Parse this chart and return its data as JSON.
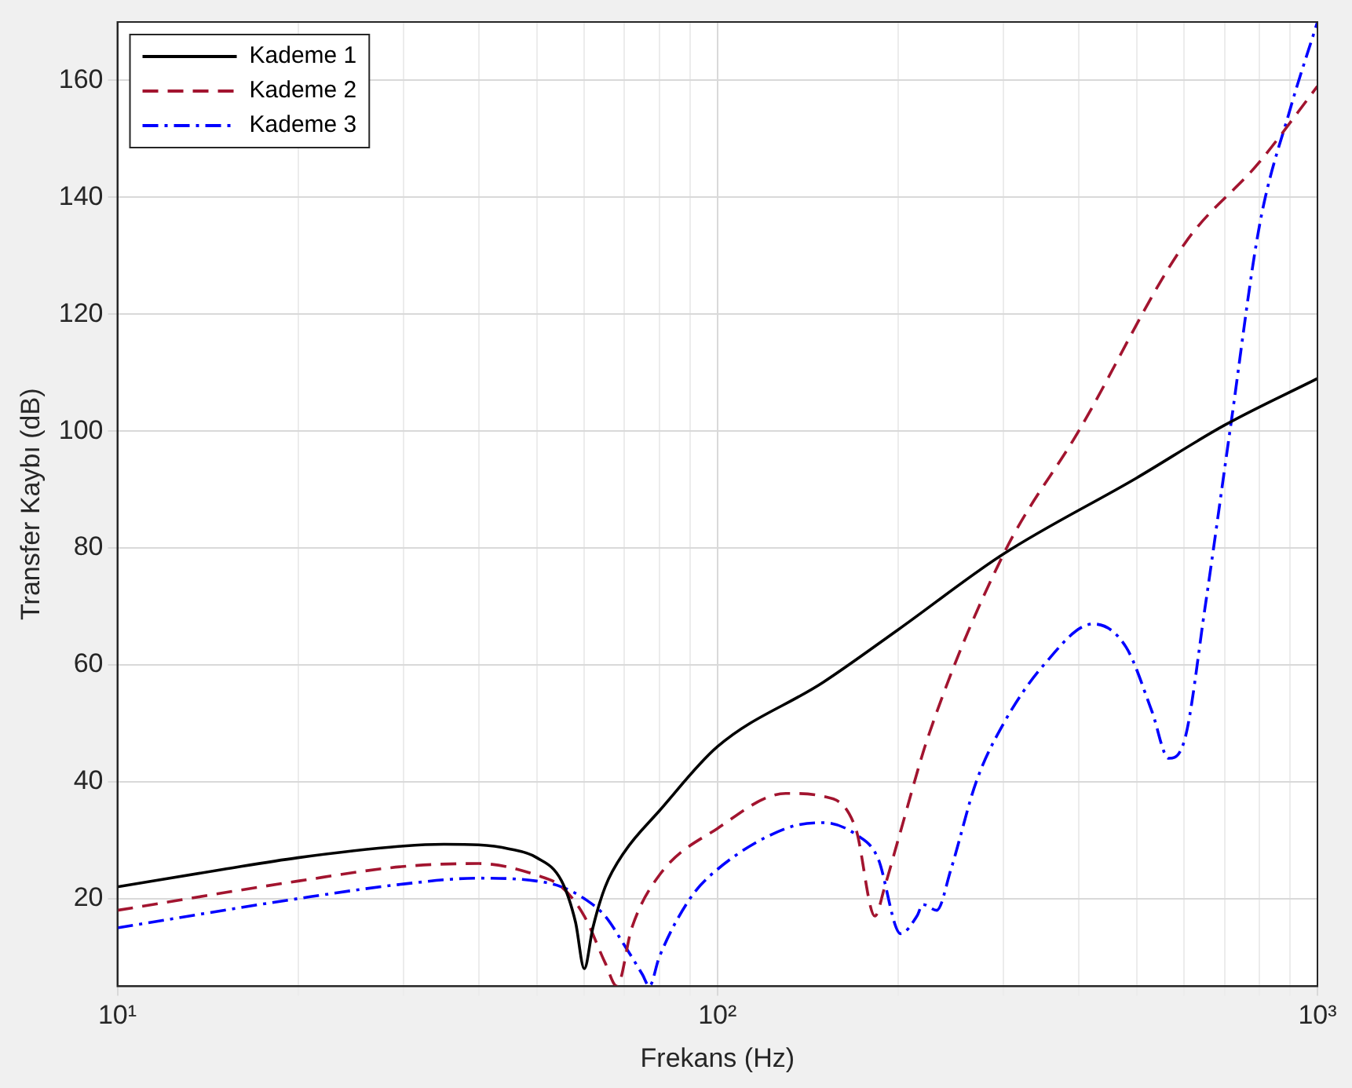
{
  "chart_data": {
    "type": "line",
    "xlabel": "Frekans (Hz)",
    "ylabel": "Transfer Kaybı (dB)",
    "log": "x",
    "grid": true,
    "legend": "top left",
    "marker": "none",
    "xlim": [
      10,
      1000
    ],
    "xticks": [
      {
        "value": 10,
        "label": "10¹"
      },
      {
        "value": 20,
        "label": null
      },
      {
        "value": 30,
        "label": null
      },
      {
        "value": 40,
        "label": null
      },
      {
        "value": 50,
        "label": null
      },
      {
        "value": 60,
        "label": null
      },
      {
        "value": 70,
        "label": null
      },
      {
        "value": 80,
        "label": null
      },
      {
        "value": 90,
        "label": null
      },
      {
        "value": 100,
        "label": "10²"
      },
      {
        "value": 200,
        "label": null
      },
      {
        "value": 300,
        "label": null
      },
      {
        "value": 400,
        "label": null
      },
      {
        "value": 500,
        "label": null
      },
      {
        "value": 600,
        "label": null
      },
      {
        "value": 700,
        "label": null
      },
      {
        "value": 800,
        "label": null
      },
      {
        "value": 900,
        "label": null
      },
      {
        "value": 1000,
        "label": "10³"
      }
    ],
    "ylim": [
      5,
      170
    ],
    "yticks": [
      20,
      40,
      60,
      80,
      100,
      120,
      140,
      160
    ],
    "series": [
      {
        "name": "Kademe 1",
        "color": "#000000",
        "line_style": "solid",
        "x": [
          10,
          15,
          20,
          30,
          35,
          40,
          45,
          50,
          55,
          58,
          60,
          62,
          65,
          70,
          80,
          100,
          150,
          200,
          300,
          500,
          700,
          1000
        ],
        "values": [
          22,
          25,
          27,
          29,
          29.3,
          29.2,
          28.5,
          27,
          23,
          16,
          8,
          15,
          22,
          28,
          35,
          46,
          57,
          66,
          79,
          92,
          101,
          109
        ]
      },
      {
        "name": "Kademe 2",
        "color": "#a2142f",
        "line_style": "dashed",
        "x": [
          10,
          20,
          30,
          40,
          50,
          55,
          60,
          65,
          68,
          72,
          80,
          100,
          130,
          150,
          170,
          183,
          190,
          200,
          225,
          300,
          400,
          600,
          800,
          1000
        ],
        "values": [
          18,
          23,
          25.5,
          26,
          24,
          22,
          17,
          9,
          5,
          15,
          24,
          32,
          38,
          37.5,
          32,
          17,
          22,
          30,
          48,
          79,
          100,
          132,
          146,
          159
        ]
      },
      {
        "name": "Kademe 3",
        "color": "#0000ff",
        "line_style": "dashdot",
        "x": [
          10,
          20,
          30,
          40,
          50,
          55,
          60,
          65,
          70,
          75,
          77,
          80,
          90,
          100,
          130,
          150,
          170,
          185,
          202,
          215,
          220,
          232,
          245,
          270,
          300,
          350,
          423,
          480,
          530,
          565,
          600,
          650,
          717,
          800,
          900,
          1000
        ],
        "values": [
          15,
          20,
          22.5,
          23.5,
          23,
          22,
          20,
          17,
          12,
          7,
          5,
          10,
          20,
          25,
          32,
          33,
          31,
          27,
          14,
          17,
          19,
          18,
          25,
          40,
          50,
          60,
          67,
          63,
          52,
          44,
          47,
          70,
          101,
          135,
          155,
          170
        ]
      }
    ]
  }
}
